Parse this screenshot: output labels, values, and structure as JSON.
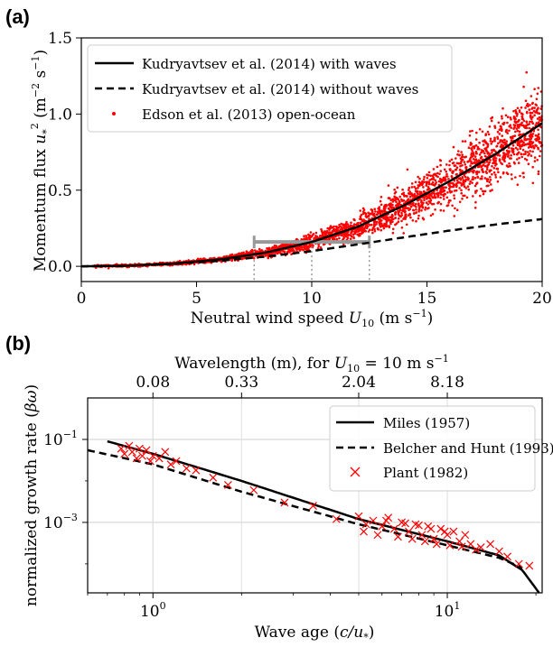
{
  "chart_data": [
    {
      "panel": "(a)",
      "type": "scatter",
      "xlabel": "Neutral wind speed U10 (m s−1)",
      "ylabel": "Momentum flux u*² (m−2 s−1)",
      "xlim": [
        0,
        20
      ],
      "ylim": [
        -0.1,
        1.5
      ],
      "xticks": [
        0,
        5,
        10,
        15,
        20
      ],
      "yticks": [
        0.0,
        0.5,
        1.0,
        1.5
      ],
      "xtick_labels": [
        "0",
        "5",
        "10",
        "15",
        "20"
      ],
      "ytick_labels": [
        "0.0",
        "0.5",
        "1.0",
        "1.5"
      ],
      "legend_position": "top-left",
      "series": [
        {
          "name": "Kudryavtsev et al. (2014) with waves",
          "style": "solid-line",
          "color": "#000000",
          "x": [
            0,
            2,
            4,
            6,
            8,
            10,
            12,
            14,
            16,
            18,
            20
          ],
          "y": [
            0,
            0.004,
            0.018,
            0.045,
            0.09,
            0.16,
            0.26,
            0.4,
            0.56,
            0.74,
            0.94
          ]
        },
        {
          "name": "Kudryavtsev et al. (2014) without waves",
          "style": "dashed-line",
          "color": "#000000",
          "x": [
            0,
            2,
            4,
            6,
            8,
            10,
            12,
            14,
            16,
            18,
            20
          ],
          "y": [
            0,
            0.004,
            0.016,
            0.036,
            0.064,
            0.1,
            0.144,
            0.19,
            0.235,
            0.275,
            0.31
          ]
        },
        {
          "name": "Edson et al. (2013) open-ocean",
          "style": "points",
          "color": "#ff0000",
          "n_points": 3000,
          "x_range": [
            0.5,
            20
          ],
          "trend": "follows with-waves curve, scatter grows with U10"
        }
      ],
      "annotation": {
        "type": "range-bar",
        "color": "#999999",
        "x_start": 7.5,
        "x_center": 10,
        "x_end": 12.5,
        "y": 0.16
      }
    },
    {
      "panel": "(b)",
      "type": "line",
      "xscale": "log",
      "yscale": "log",
      "xlabel": "Wave age (c/u*)",
      "ylabel": "normalized growth rate (βω)",
      "top_xlabel": "Wavelength (m), for U10 = 10 m s−1",
      "xlim": [
        0.6,
        21
      ],
      "ylim": [
        2e-05,
        1
      ],
      "xticks": [
        1,
        10
      ],
      "xtick_labels": [
        "10^0",
        "10^1"
      ],
      "yticks": [
        0.1,
        0.001
      ],
      "ytick_labels": [
        "10^−1",
        "10^−3"
      ],
      "top_ticks": {
        "wave_age": [
          1,
          2,
          5,
          10
        ],
        "labels": [
          "0.08",
          "0.33",
          "2.04",
          "8.18"
        ]
      },
      "legend_position": "top-right",
      "series": [
        {
          "name": "Miles (1957)",
          "style": "solid-line",
          "color": "#000000",
          "x": [
            0.7,
            1,
            2,
            5,
            10,
            15,
            18,
            20.5
          ],
          "y": [
            0.09,
            0.045,
            0.01,
            0.0012,
            0.00035,
            0.00016,
            7e-05,
            2e-05
          ]
        },
        {
          "name": "Belcher and Hunt (1993)",
          "style": "dashed-line",
          "color": "#000000",
          "x": [
            0.6,
            1,
            2,
            5,
            10,
            15,
            18
          ],
          "y": [
            0.055,
            0.025,
            0.0055,
            0.0009,
            0.00028,
            0.00014,
            8e-05
          ]
        },
        {
          "name": "Plant (1982)",
          "style": "x-markers",
          "color": "#ff0000",
          "x": [
            0.78,
            0.8,
            0.83,
            0.85,
            0.88,
            0.9,
            0.92,
            0.95,
            0.98,
            1.0,
            1.05,
            1.1,
            1.15,
            1.2,
            1.3,
            1.4,
            1.6,
            1.8,
            2.2,
            2.8,
            3.5,
            4.2,
            5.0,
            5.3,
            5.6,
            6.0,
            6.3,
            6.6,
            7.0,
            7.4,
            7.8,
            8.2,
            8.6,
            9.0,
            9.5,
            10.0,
            10.5,
            11.0,
            11.5,
            12.0,
            13.0,
            14.0,
            15.0,
            16.0,
            17.5,
            19.0,
            5.2,
            5.8,
            6.8,
            7.6,
            8.4,
            9.2,
            10.2,
            11.2,
            12.5,
            6.2,
            7.2,
            8.0,
            8.8,
            9.8
          ],
          "y": [
            0.06,
            0.045,
            0.07,
            0.05,
            0.035,
            0.06,
            0.04,
            0.055,
            0.03,
            0.04,
            0.035,
            0.05,
            0.025,
            0.03,
            0.02,
            0.018,
            0.012,
            0.008,
            0.006,
            0.003,
            0.0025,
            0.0012,
            0.0014,
            0.0009,
            0.0011,
            0.0008,
            0.0013,
            0.0007,
            0.001,
            0.0006,
            0.0009,
            0.0005,
            0.0008,
            0.0004,
            0.0007,
            0.0005,
            0.0006,
            0.00035,
            0.0005,
            0.0003,
            0.00025,
            0.0003,
            0.0002,
            0.00015,
            0.0001,
            9e-05,
            0.0006,
            0.0005,
            0.00045,
            0.0004,
            0.00035,
            0.0003,
            0.00028,
            0.00026,
            0.00022,
            0.0011,
            0.00095,
            0.00085,
            0.0007,
            0.0006
          ]
        }
      ]
    }
  ],
  "labels": {
    "panel_a": "(a)",
    "panel_b": "(b)",
    "a_ylabel_main": "Momentum flux ",
    "a_ylabel_var": "u",
    "a_ylabel_sub": "*",
    "a_ylabel_sup": "2",
    "a_ylabel_units": " (m",
    "a_ylabel_units_sup1": "−2",
    "a_ylabel_units_mid": " s",
    "a_ylabel_units_sup2": "−1",
    "a_ylabel_close": ")",
    "a_xlabel_main": "Neutral wind speed ",
    "a_xlabel_var": "U",
    "a_xlabel_sub": "10",
    "a_xlabel_units": " (m s",
    "a_xlabel_units_sup": "−1",
    "a_xlabel_close": ")",
    "b_top_xlabel_main": "Wavelength (m), for ",
    "b_top_xlabel_var": "U",
    "b_top_xlabel_sub": "10",
    "b_top_xlabel_eq": " = 10 m s",
    "b_top_xlabel_sup": "−1",
    "b_xlabel_main": "Wave age (",
    "b_xlabel_var": "c/u",
    "b_xlabel_sub": "*",
    "b_xlabel_close": ")",
    "b_ylabel_main": "normalized growth rate (",
    "b_ylabel_var": "βω",
    "b_ylabel_close": ")",
    "b_xtick_base": "10",
    "b_xtick_exp0": "0",
    "b_xtick_exp1": "1",
    "b_ytick_base": "10",
    "b_ytick_exp1": "−1",
    "b_ytick_exp3": "−3"
  }
}
